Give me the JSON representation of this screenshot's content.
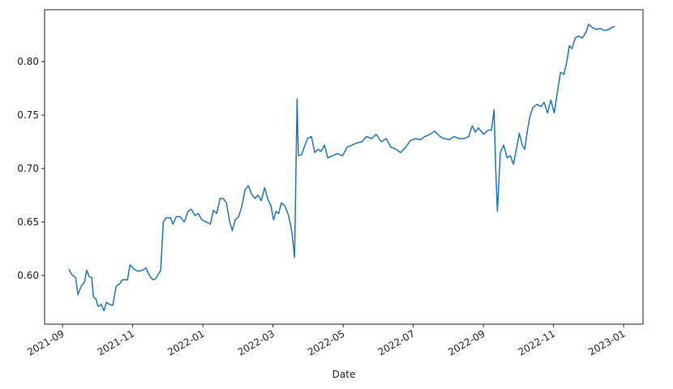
{
  "chart_data": {
    "type": "line",
    "x_label": "Date",
    "x": [
      2021.682,
      2021.688,
      2021.698,
      2021.703,
      2021.711,
      2021.719,
      2021.724,
      2021.73,
      2021.736,
      2021.74,
      2021.746,
      2021.751,
      2021.759,
      2021.765,
      2021.771,
      2021.778,
      2021.786,
      2021.794,
      2021.802,
      2021.809,
      2021.821,
      2021.827,
      2021.836,
      2021.846,
      2021.857,
      2021.865,
      2021.873,
      2021.881,
      2021.888,
      2021.9,
      2021.906,
      2021.913,
      2021.923,
      2021.929,
      2021.937,
      2021.946,
      2021.956,
      2021.965,
      2021.973,
      2021.981,
      2021.989,
      2021.998,
      2022.008,
      2022.018,
      2022.025,
      2022.033,
      2022.041,
      2022.048,
      2022.056,
      2022.064,
      2022.07,
      2022.077,
      2022.085,
      2022.093,
      2022.1,
      2022.108,
      2022.116,
      2022.124,
      2022.131,
      2022.139,
      2022.147,
      2022.154,
      2022.162,
      2022.168,
      2022.174,
      2022.18,
      2022.187,
      2022.195,
      2022.203,
      2022.208,
      2022.212,
      2022.218,
      2022.224,
      2022.227,
      2022.235,
      2022.241,
      2022.249,
      2022.258,
      2022.266,
      2022.274,
      2022.281,
      2022.289,
      2022.297,
      2022.308,
      2022.32,
      2022.332,
      2022.343,
      2022.355,
      2022.366,
      2022.378,
      2022.389,
      2022.401,
      2022.412,
      2022.424,
      2022.436,
      2022.447,
      2022.459,
      2022.47,
      2022.482,
      2022.493,
      2022.505,
      2022.517,
      2022.528,
      2022.54,
      2022.551,
      2022.563,
      2022.574,
      2022.586,
      2022.597,
      2022.609,
      2022.621,
      2022.632,
      2022.64,
      2022.648,
      2022.655,
      2022.667,
      2022.678,
      2022.686,
      2022.692,
      2022.696,
      2022.7,
      2022.707,
      2022.715,
      2022.723,
      2022.731,
      2022.738,
      2022.746,
      2022.752,
      2022.759,
      2022.765,
      2022.771,
      2022.777,
      2022.784,
      2022.794,
      2022.804,
      2022.811,
      2022.819,
      2022.827,
      2022.835,
      2022.842,
      2022.85,
      2022.858,
      2022.865,
      2022.871,
      2022.877,
      2022.885,
      2022.892,
      2022.902,
      2022.91,
      2022.917,
      2022.925,
      2022.935,
      2022.944,
      2022.954,
      2022.964,
      2022.973,
      2022.979
    ],
    "series": [
      {
        "color": "#1f77b4",
        "values": [
          0.606,
          0.601,
          0.598,
          0.582,
          0.59,
          0.594,
          0.605,
          0.599,
          0.598,
          0.58,
          0.578,
          0.571,
          0.573,
          0.567,
          0.575,
          0.573,
          0.572,
          0.59,
          0.592,
          0.596,
          0.596,
          0.61,
          0.606,
          0.604,
          0.605,
          0.607,
          0.6,
          0.596,
          0.597,
          0.605,
          0.65,
          0.654,
          0.654,
          0.648,
          0.655,
          0.655,
          0.65,
          0.66,
          0.662,
          0.656,
          0.658,
          0.652,
          0.65,
          0.648,
          0.661,
          0.658,
          0.672,
          0.672,
          0.668,
          0.65,
          0.642,
          0.652,
          0.655,
          0.665,
          0.68,
          0.684,
          0.676,
          0.672,
          0.675,
          0.67,
          0.682,
          0.672,
          0.665,
          0.652,
          0.66,
          0.658,
          0.668,
          0.665,
          0.657,
          0.648,
          0.64,
          0.617,
          0.765,
          0.712,
          0.713,
          0.72,
          0.728,
          0.73,
          0.715,
          0.718,
          0.716,
          0.722,
          0.71,
          0.712,
          0.714,
          0.712,
          0.72,
          0.722,
          0.724,
          0.725,
          0.73,
          0.728,
          0.732,
          0.725,
          0.728,
          0.72,
          0.718,
          0.715,
          0.72,
          0.726,
          0.728,
          0.727,
          0.73,
          0.732,
          0.735,
          0.73,
          0.728,
          0.727,
          0.73,
          0.728,
          0.728,
          0.73,
          0.74,
          0.734,
          0.738,
          0.732,
          0.736,
          0.736,
          0.755,
          0.7,
          0.66,
          0.715,
          0.722,
          0.71,
          0.712,
          0.704,
          0.72,
          0.733,
          0.722,
          0.718,
          0.735,
          0.748,
          0.757,
          0.76,
          0.758,
          0.762,
          0.752,
          0.764,
          0.752,
          0.77,
          0.79,
          0.788,
          0.8,
          0.815,
          0.812,
          0.822,
          0.824,
          0.822,
          0.827,
          0.835,
          0.832,
          0.83,
          0.831,
          0.829,
          0.83,
          0.832,
          0.833
        ]
      }
    ],
    "xlim": [
      2021.624,
      2023.046
    ],
    "xticks": [
      {
        "value": 2021.6667,
        "label": "2021-09"
      },
      {
        "value": 2021.8333,
        "label": "2021-11"
      },
      {
        "value": 2022.0,
        "label": "2022-01"
      },
      {
        "value": 2022.1667,
        "label": "2022-03"
      },
      {
        "value": 2022.3333,
        "label": "2022-05"
      },
      {
        "value": 2022.5,
        "label": "2022-07"
      },
      {
        "value": 2022.6667,
        "label": "2022-09"
      },
      {
        "value": 2022.8333,
        "label": "2022-11"
      },
      {
        "value": 2023.0,
        "label": "2023-01"
      }
    ],
    "ylim": [
      0.5545,
      0.8485
    ],
    "yticks": [
      {
        "value": 0.6,
        "label": "0.60"
      },
      {
        "value": 0.65,
        "label": "0.65"
      },
      {
        "value": 0.7,
        "label": "0.70"
      },
      {
        "value": 0.75,
        "label": "0.75"
      },
      {
        "value": 0.8,
        "label": "0.80"
      }
    ]
  }
}
